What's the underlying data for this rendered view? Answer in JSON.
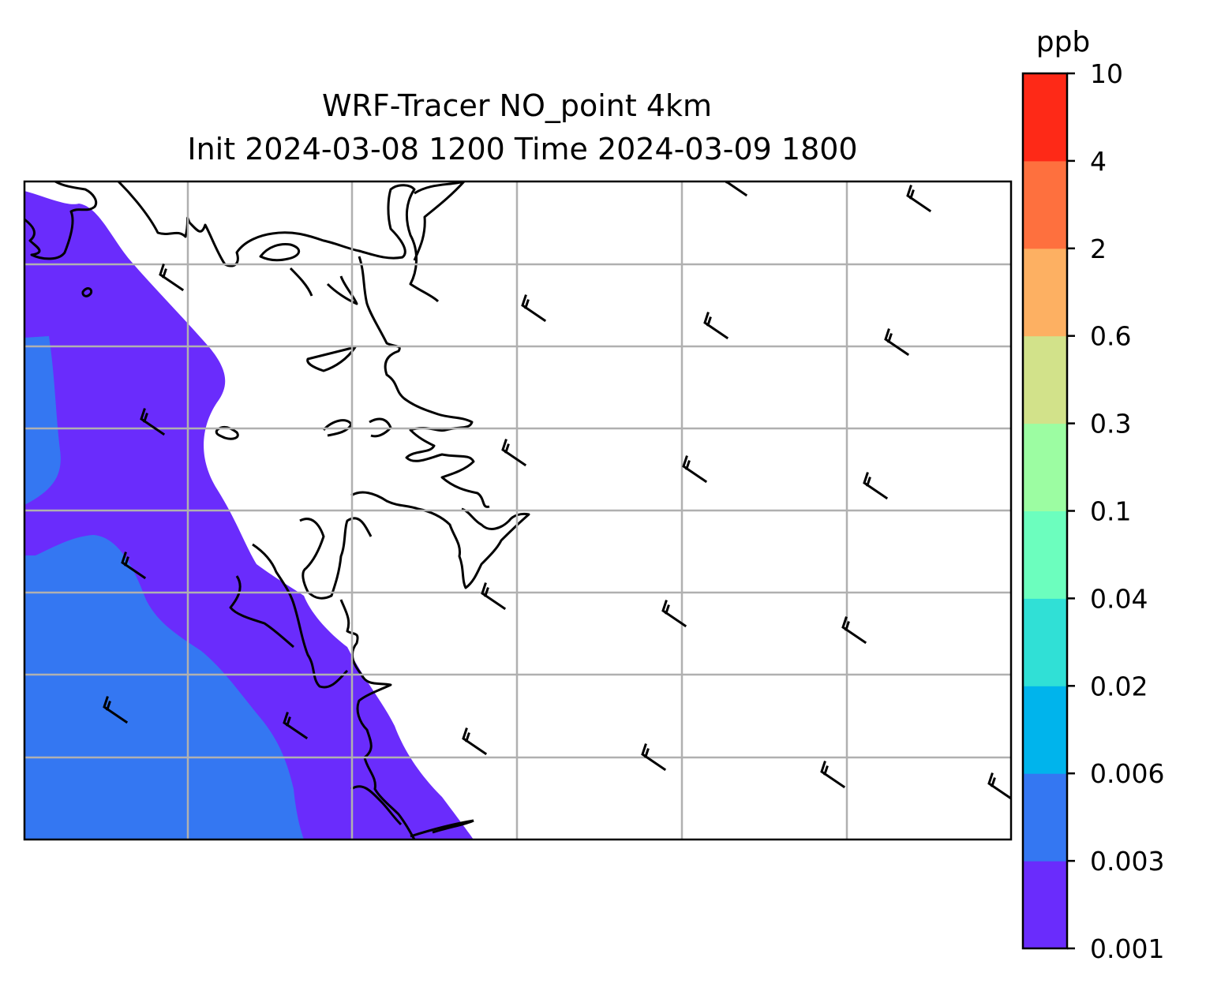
{
  "title": {
    "line1": "WRF-Tracer NO_point 4km",
    "line2": "Init 2024-03-08 1200 Time 2024-03-09 1800"
  },
  "colorbar": {
    "unit": "ppb",
    "levels": [
      "0.001",
      "0.003",
      "0.006",
      "0.02",
      "0.04",
      "0.1",
      "0.3",
      "0.6",
      "2",
      "4",
      "10"
    ],
    "colors": [
      "#6a2cfc",
      "#3477f2",
      "#00b4ec",
      "#30e0d6",
      "#6cfebe",
      "#9cfda2",
      "#d2e28a",
      "#fdb062",
      "#fe703e",
      "#fe2917"
    ]
  },
  "map": {
    "field_colors": {
      "lowest_band": "#6a2cfc",
      "second_band": "#3477f2"
    },
    "gridline_color": "#b0b0b0",
    "wind_barb_color": "#000000"
  }
}
